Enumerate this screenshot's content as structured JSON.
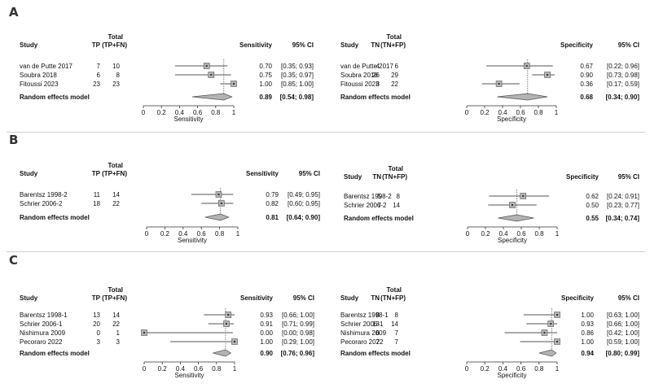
{
  "labels": [
    "A",
    "B",
    "C"
  ],
  "chart_data": [
    {
      "type": "forest",
      "panel": "A",
      "side": "left",
      "headers": {
        "study": "Study",
        "count": "TP",
        "total_top": "Total",
        "total_bottom": "(TP+FN)",
        "stat": "Sensitivity",
        "ci": "95% CI"
      },
      "studies": [
        {
          "name": "van de Putte 2017",
          "count": "7",
          "total": "10",
          "est": 0.7,
          "lo": 0.35,
          "hi": 0.93,
          "est_text": "0.70",
          "ci_text": "[0.35; 0.93]"
        },
        {
          "name": "Soubra 2018",
          "count": "6",
          "total": "8",
          "est": 0.75,
          "lo": 0.35,
          "hi": 0.97,
          "est_text": "0.75",
          "ci_text": "[0.35; 0.97]"
        },
        {
          "name": "Fitoussi 2023",
          "count": "23",
          "total": "23",
          "est": 1.0,
          "lo": 0.85,
          "hi": 1.0,
          "est_text": "1.00",
          "ci_text": "[0.85; 1.00]"
        }
      ],
      "summary": {
        "name": "Random effects model",
        "est": 0.89,
        "lo": 0.54,
        "hi": 0.98,
        "est_text": "0.89",
        "ci_text": "[0.54; 0.98]"
      },
      "xlim": [
        0,
        1
      ],
      "ticks": [
        "0",
        "0.2",
        "0.4",
        "0.6",
        "0.8",
        "1"
      ],
      "xlabel": "Sensitivity"
    },
    {
      "type": "forest",
      "panel": "A",
      "side": "right",
      "headers": {
        "study": "Study",
        "count": "TN",
        "total_top": "Total",
        "total_bottom": "(TN+FP)",
        "stat": "Specificity",
        "ci": "95% CI"
      },
      "studies": [
        {
          "name": "van de Putte 2017",
          "count": "4",
          "total": "6",
          "est": 0.67,
          "lo": 0.22,
          "hi": 0.96,
          "est_text": "0.67",
          "ci_text": "[0.22; 0.96]"
        },
        {
          "name": "Soubra 2018",
          "count": "26",
          "total": "29",
          "est": 0.9,
          "lo": 0.73,
          "hi": 0.98,
          "est_text": "0.90",
          "ci_text": "[0.73; 0.98]"
        },
        {
          "name": "Fitoussi 2023",
          "count": "8",
          "total": "22",
          "est": 0.36,
          "lo": 0.17,
          "hi": 0.59,
          "est_text": "0.36",
          "ci_text": "[0.17; 0.59]"
        }
      ],
      "summary": {
        "name": "Random effects model",
        "est": 0.68,
        "lo": 0.34,
        "hi": 0.9,
        "est_text": "0.68",
        "ci_text": "[0.34; 0.90]"
      },
      "xlim": [
        0,
        1
      ],
      "ticks": [
        "0",
        "0.2",
        "0.4",
        "0.6",
        "0.8",
        "1"
      ],
      "xlabel": "Specificity"
    },
    {
      "type": "forest",
      "panel": "B",
      "side": "left",
      "headers": {
        "study": "Study",
        "count": "TP",
        "total_top": "Total",
        "total_bottom": "(TP+FN)",
        "stat": "Sensitivity",
        "ci": "95% CI"
      },
      "studies": [
        {
          "name": "Barentsz 1998-2",
          "count": "11",
          "total": "14",
          "est": 0.79,
          "lo": 0.49,
          "hi": 0.95,
          "est_text": "0.79",
          "ci_text": "[0.49; 0.95]"
        },
        {
          "name": "Schrier 2006-2",
          "count": "18",
          "total": "22",
          "est": 0.82,
          "lo": 0.6,
          "hi": 0.95,
          "est_text": "0.82",
          "ci_text": "[0.60; 0.95]"
        }
      ],
      "summary": {
        "name": "Random effects model",
        "est": 0.81,
        "lo": 0.64,
        "hi": 0.9,
        "est_text": "0.81",
        "ci_text": "[0.64; 0.90]"
      },
      "xlim": [
        0,
        1
      ],
      "ticks": [
        "0",
        "0.2",
        "0.4",
        "0.6",
        "0.8",
        "1"
      ],
      "xlabel": "Sensitivity"
    },
    {
      "type": "forest",
      "panel": "B",
      "side": "right",
      "headers": {
        "study": "Study",
        "count": "TN",
        "total_top": "Total",
        "total_bottom": "(TN+FP)",
        "stat": "Specificity",
        "ci": "95% CI"
      },
      "studies": [
        {
          "name": "Barentsz 1998-2",
          "count": "5",
          "total": "8",
          "est": 0.62,
          "lo": 0.24,
          "hi": 0.91,
          "est_text": "0.62",
          "ci_text": "[0.24; 0.91]"
        },
        {
          "name": "Schrier 2006-2",
          "count": "7",
          "total": "14",
          "est": 0.5,
          "lo": 0.23,
          "hi": 0.77,
          "est_text": "0.50",
          "ci_text": "[0.23; 0.77]"
        }
      ],
      "summary": {
        "name": "Random effects model",
        "est": 0.55,
        "lo": 0.34,
        "hi": 0.74,
        "est_text": "0.55",
        "ci_text": "[0.34; 0.74]"
      },
      "xlim": [
        0,
        1
      ],
      "ticks": [
        "0",
        "0.2",
        "0.4",
        "0.6",
        "0.8",
        "1"
      ],
      "xlabel": "Specificity"
    },
    {
      "type": "forest",
      "panel": "C",
      "side": "left",
      "headers": {
        "study": "Study",
        "count": "TP",
        "total_top": "Total",
        "total_bottom": "(TP+FN)",
        "stat": "Sensitivity",
        "ci": "95% CI"
      },
      "studies": [
        {
          "name": "Barentsz 1998-1",
          "count": "13",
          "total": "14",
          "est": 0.93,
          "lo": 0.66,
          "hi": 1.0,
          "est_text": "0.93",
          "ci_text": "[0.66; 1.00]"
        },
        {
          "name": "Schrier 2006-1",
          "count": "20",
          "total": "22",
          "est": 0.91,
          "lo": 0.71,
          "hi": 0.99,
          "est_text": "0.91",
          "ci_text": "[0.71; 0.99]"
        },
        {
          "name": "Nishimura 2009",
          "count": "0",
          "total": "1",
          "est": 0.0,
          "lo": 0.0,
          "hi": 0.98,
          "est_text": "0.00",
          "ci_text": "[0.00; 0.98]"
        },
        {
          "name": "Pecoraro 2022",
          "count": "3",
          "total": "3",
          "est": 1.0,
          "lo": 0.29,
          "hi": 1.0,
          "est_text": "1.00",
          "ci_text": "[0.29; 1.00]"
        }
      ],
      "summary": {
        "name": "Random effects model",
        "est": 0.9,
        "lo": 0.76,
        "hi": 0.96,
        "est_text": "0.90",
        "ci_text": "[0.76; 0.96]"
      },
      "xlim": [
        0,
        1
      ],
      "ticks": [
        "0",
        "0.2",
        "0.4",
        "0.6",
        "0.8",
        "1"
      ],
      "xlabel": "Sensitivity"
    },
    {
      "type": "forest",
      "panel": "C",
      "side": "right",
      "headers": {
        "study": "Study",
        "count": "TN",
        "total_top": "Total",
        "total_bottom": "(TN+FP)",
        "stat": "Specificity",
        "ci": "95% CI"
      },
      "studies": [
        {
          "name": "Barentsz 1998-1",
          "count": "8",
          "total": "8",
          "est": 1.0,
          "lo": 0.63,
          "hi": 1.0,
          "est_text": "1.00",
          "ci_text": "[0.63; 1.00]"
        },
        {
          "name": "Schrier 2006-1",
          "count": "13",
          "total": "14",
          "est": 0.93,
          "lo": 0.66,
          "hi": 1.0,
          "est_text": "0.93",
          "ci_text": "[0.66; 1.00]"
        },
        {
          "name": "Nishimura 2009",
          "count": "6",
          "total": "7",
          "est": 0.86,
          "lo": 0.42,
          "hi": 1.0,
          "est_text": "0.86",
          "ci_text": "[0.42; 1.00]"
        },
        {
          "name": "Pecoraro 2022",
          "count": "7",
          "total": "7",
          "est": 1.0,
          "lo": 0.59,
          "hi": 1.0,
          "est_text": "1.00",
          "ci_text": "[0.59; 1.00]"
        }
      ],
      "summary": {
        "name": "Random effects model",
        "est": 0.94,
        "lo": 0.8,
        "hi": 0.99,
        "est_text": "0.94",
        "ci_text": "[0.80; 0.99]"
      },
      "xlim": [
        0,
        1
      ],
      "ticks": [
        "0",
        "0.2",
        "0.4",
        "0.6",
        "0.8",
        "1"
      ],
      "xlabel": "Specificity"
    }
  ]
}
